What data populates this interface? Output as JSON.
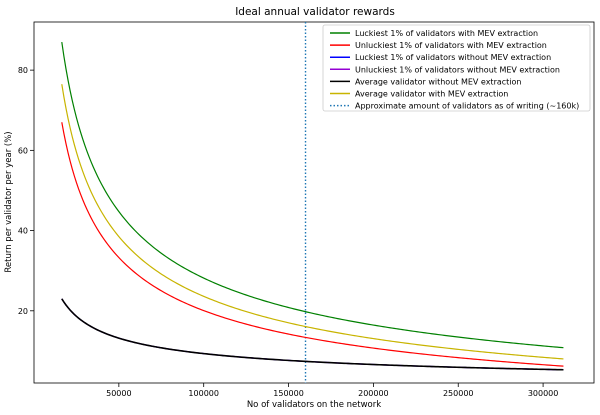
{
  "chart_data": {
    "type": "line",
    "title": "Ideal annual validator rewards",
    "xlabel": "No of validators on the network",
    "ylabel": "Return per validator per year (%)",
    "xlim": [
      0,
      330000
    ],
    "ylim": [
      2,
      92
    ],
    "xticks": [
      50000,
      100000,
      150000,
      200000,
      250000,
      300000
    ],
    "xtick_labels": [
      "50000",
      "100000",
      "150000",
      "200000",
      "250000",
      "300000"
    ],
    "yticks": [
      20,
      40,
      60,
      80
    ],
    "ytick_labels": [
      "20",
      "40",
      "60",
      "80"
    ],
    "x_start": 16384,
    "x_end": 312000,
    "legend_position": "top-right",
    "series": [
      {
        "name": "Luckiest 1% of validators with MEV extraction",
        "color": "#008000",
        "y_start": 87.0,
        "y_end": 10.8
      },
      {
        "name": "Unluckiest 1% of validators with MEV extraction",
        "color": "#ff0000",
        "y_start": 67.0,
        "y_end": 6.2
      },
      {
        "name": "Luckiest 1% of validators without MEV extraction",
        "color": "#0000ff",
        "y_start": 23.0,
        "y_end": 5.3
      },
      {
        "name": "Unluckiest 1% of validators without MEV extraction",
        "color": "#9400d3",
        "y_start": 23.0,
        "y_end": 5.3
      },
      {
        "name": "Average validator without MEV extraction",
        "color": "#000000",
        "y_start": 23.0,
        "y_end": 5.3
      },
      {
        "name": "Average validator with MEV extraction",
        "color": "#c8b400",
        "y_start": 76.5,
        "y_end": 8.0
      }
    ],
    "vline": {
      "name": "Approximate amount of validators as of writing (~160k)",
      "x": 160000,
      "color": "#1f77b4",
      "style": "dotted"
    }
  }
}
